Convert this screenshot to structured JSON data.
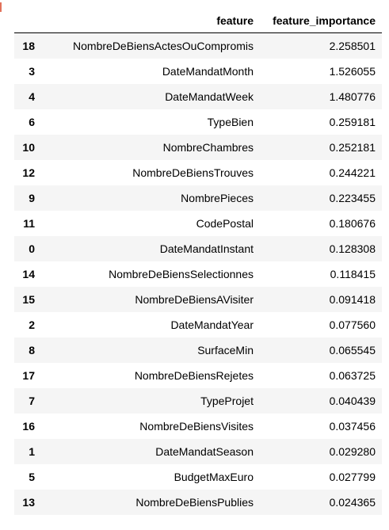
{
  "table": {
    "columns": {
      "index": "",
      "feature": "feature",
      "importance": "feature_importance"
    },
    "rows": [
      {
        "index": "18",
        "feature": "NombreDeBiensActesOuCompromis",
        "importance": "2.258501"
      },
      {
        "index": "3",
        "feature": "DateMandatMonth",
        "importance": "1.526055"
      },
      {
        "index": "4",
        "feature": "DateMandatWeek",
        "importance": "1.480776"
      },
      {
        "index": "6",
        "feature": "TypeBien",
        "importance": "0.259181"
      },
      {
        "index": "10",
        "feature": "NombreChambres",
        "importance": "0.252181"
      },
      {
        "index": "12",
        "feature": "NombreDeBiensTrouves",
        "importance": "0.244221"
      },
      {
        "index": "9",
        "feature": "NombrePieces",
        "importance": "0.223455"
      },
      {
        "index": "11",
        "feature": "CodePostal",
        "importance": "0.180676"
      },
      {
        "index": "0",
        "feature": "DateMandatInstant",
        "importance": "0.128308"
      },
      {
        "index": "14",
        "feature": "NombreDeBiensSelectionnes",
        "importance": "0.118415"
      },
      {
        "index": "15",
        "feature": "NombreDeBiensAVisiter",
        "importance": "0.091418"
      },
      {
        "index": "2",
        "feature": "DateMandatYear",
        "importance": "0.077560"
      },
      {
        "index": "8",
        "feature": "SurfaceMin",
        "importance": "0.065545"
      },
      {
        "index": "17",
        "feature": "NombreDeBiensRejetes",
        "importance": "0.063725"
      },
      {
        "index": "7",
        "feature": "TypeProjet",
        "importance": "0.040439"
      },
      {
        "index": "16",
        "feature": "NombreDeBiensVisites",
        "importance": "0.037456"
      },
      {
        "index": "1",
        "feature": "DateMandatSeason",
        "importance": "0.029280"
      },
      {
        "index": "5",
        "feature": "BudgetMaxEuro",
        "importance": "0.027799"
      },
      {
        "index": "13",
        "feature": "NombreDeBiensPublies",
        "importance": "0.024365"
      }
    ]
  }
}
